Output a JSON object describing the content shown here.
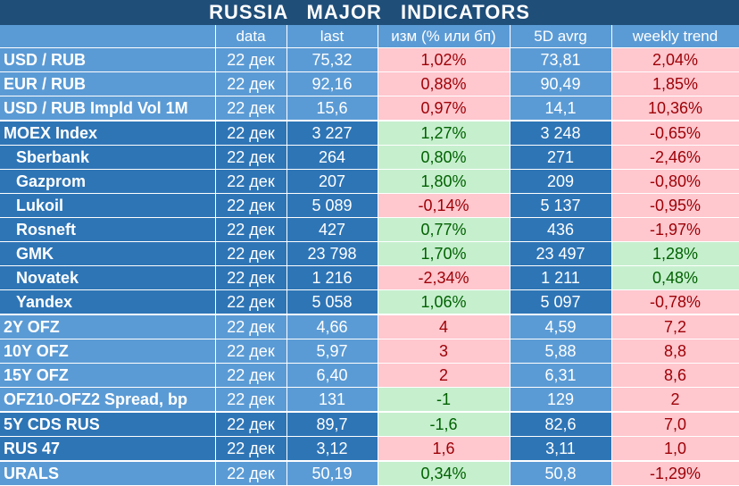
{
  "title": "RUSSIA   MAJOR   INDICATORS",
  "columns": [
    "",
    "data",
    "last",
    "изм (% или бп)",
    "5D avrg",
    "weekly trend"
  ],
  "rows": [
    {
      "name": "USD / RUB",
      "sub": false,
      "date": "22 дек",
      "last": "75,32",
      "chg": "1,02%",
      "chg_sign": "neg",
      "avg": "73,81",
      "trend": "2,04%",
      "trend_sign": "neg",
      "shade": "bl",
      "sep": false
    },
    {
      "name": "EUR / RUB",
      "sub": false,
      "date": "22 дек",
      "last": "92,16",
      "chg": "0,88%",
      "chg_sign": "neg",
      "avg": "90,49",
      "trend": "1,85%",
      "trend_sign": "neg",
      "shade": "bl",
      "sep": false
    },
    {
      "name": "USD / RUB Impld Vol 1M",
      "sub": false,
      "date": "22 дек",
      "last": "15,6",
      "chg": "0,97%",
      "chg_sign": "neg",
      "avg": "14,1",
      "trend": "10,36%",
      "trend_sign": "neg",
      "shade": "bl",
      "sep": false
    },
    {
      "name": "MOEX Index",
      "sub": false,
      "date": "22 дек",
      "last": "3 227",
      "chg": "1,27%",
      "chg_sign": "pos",
      "avg": "3 248",
      "trend": "-0,65%",
      "trend_sign": "neg",
      "shade": "bd",
      "sep": true
    },
    {
      "name": "Sberbank",
      "sub": true,
      "date": "22 дек",
      "last": "264",
      "chg": "0,80%",
      "chg_sign": "pos",
      "avg": "271",
      "trend": "-2,46%",
      "trend_sign": "neg",
      "shade": "bd",
      "sep": false
    },
    {
      "name": "Gazprom",
      "sub": true,
      "date": "22 дек",
      "last": "207",
      "chg": "1,80%",
      "chg_sign": "pos",
      "avg": "209",
      "trend": "-0,80%",
      "trend_sign": "neg",
      "shade": "bd",
      "sep": false
    },
    {
      "name": "Lukoil",
      "sub": true,
      "date": "22 дек",
      "last": "5 089",
      "chg": "-0,14%",
      "chg_sign": "neg",
      "avg": "5 137",
      "trend": "-0,95%",
      "trend_sign": "neg",
      "shade": "bd",
      "sep": false
    },
    {
      "name": "Rosneft",
      "sub": true,
      "date": "22 дек",
      "last": "427",
      "chg": "0,77%",
      "chg_sign": "pos",
      "avg": "436",
      "trend": "-1,97%",
      "trend_sign": "neg",
      "shade": "bd",
      "sep": false
    },
    {
      "name": "GMK",
      "sub": true,
      "date": "22 дек",
      "last": "23 798",
      "chg": "1,70%",
      "chg_sign": "pos",
      "avg": "23 497",
      "trend": "1,28%",
      "trend_sign": "pos",
      "shade": "bd",
      "sep": false
    },
    {
      "name": "Novatek",
      "sub": true,
      "date": "22 дек",
      "last": "1 216",
      "chg": "-2,34%",
      "chg_sign": "neg",
      "avg": "1 211",
      "trend": "0,48%",
      "trend_sign": "pos",
      "shade": "bd",
      "sep": false
    },
    {
      "name": "Yandex",
      "sub": true,
      "date": "22 дек",
      "last": "5 058",
      "chg": "1,06%",
      "chg_sign": "pos",
      "avg": "5 097",
      "trend": "-0,78%",
      "trend_sign": "neg",
      "shade": "bd",
      "sep": false
    },
    {
      "name": "2Y OFZ",
      "sub": false,
      "date": "22 дек",
      "last": "4,66",
      "chg": "4",
      "chg_sign": "neg",
      "avg": "4,59",
      "trend": "7,2",
      "trend_sign": "neg",
      "shade": "bl",
      "sep": true
    },
    {
      "name": "10Y OFZ",
      "sub": false,
      "date": "22 дек",
      "last": "5,97",
      "chg": "3",
      "chg_sign": "neg",
      "avg": "5,88",
      "trend": "8,8",
      "trend_sign": "neg",
      "shade": "bl",
      "sep": false
    },
    {
      "name": "15Y OFZ",
      "sub": false,
      "date": "22 дек",
      "last": "6,40",
      "chg": "2",
      "chg_sign": "neg",
      "avg": "6,31",
      "trend": "8,6",
      "trend_sign": "neg",
      "shade": "bl",
      "sep": false
    },
    {
      "name": "OFZ10-OFZ2 Spread, bp",
      "sub": false,
      "date": "22 дек",
      "last": "131",
      "chg": "-1",
      "chg_sign": "pos",
      "avg": "129",
      "trend": "2",
      "trend_sign": "neg",
      "shade": "bl",
      "sep": false
    },
    {
      "name": "5Y CDS RUS",
      "sub": false,
      "date": "22 дек",
      "last": "89,7",
      "chg": "-1,6",
      "chg_sign": "pos",
      "avg": "82,6",
      "trend": "7,0",
      "trend_sign": "neg",
      "shade": "bd",
      "sep": true
    },
    {
      "name": "RUS 47",
      "sub": false,
      "date": "22 дек",
      "last": "3,12",
      "chg": "1,6",
      "chg_sign": "neg",
      "avg": "3,11",
      "trend": "1,0",
      "trend_sign": "neg",
      "shade": "bd",
      "sep": false
    },
    {
      "name": "URALS",
      "sub": false,
      "date": "22 дек",
      "last": "50,19",
      "chg": "0,34%",
      "chg_sign": "pos",
      "avg": "50,8",
      "trend": "-1,29%",
      "trend_sign": "neg",
      "shade": "bl",
      "sep": true
    }
  ]
}
